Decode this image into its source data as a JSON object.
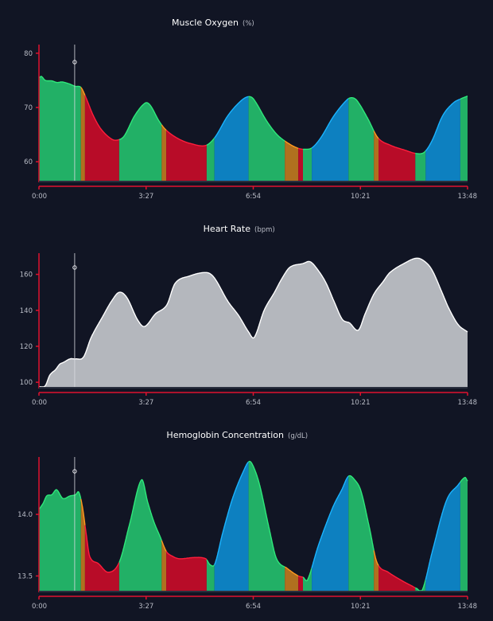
{
  "zone_colors": {
    "green": {
      "fill": "#22b066",
      "line": "#2ee87a"
    },
    "orange": {
      "fill": "#b0701f",
      "line": "#ff9a1e"
    },
    "red": {
      "fill": "#b80c28",
      "line": "#ff1e3c"
    },
    "blue": {
      "fill": "#0d80c0",
      "line": "#1ab4ff"
    },
    "gray": {
      "fill": "#b4b7bd",
      "line": "#ffffff"
    }
  },
  "axis_color": "#e0122e",
  "cursor_time_s": 69,
  "zones": [
    {
      "from": 0,
      "to": 81,
      "zone": "green"
    },
    {
      "from": 81,
      "to": 89,
      "zone": "orange"
    },
    {
      "from": 89,
      "to": 155,
      "zone": "red"
    },
    {
      "from": 155,
      "to": 237,
      "zone": "green"
    },
    {
      "from": 237,
      "to": 246,
      "zone": "orange"
    },
    {
      "from": 246,
      "to": 324,
      "zone": "red"
    },
    {
      "from": 324,
      "to": 339,
      "zone": "green"
    },
    {
      "from": 339,
      "to": 405,
      "zone": "blue"
    },
    {
      "from": 405,
      "to": 475,
      "zone": "green"
    },
    {
      "from": 475,
      "to": 501,
      "zone": "orange"
    },
    {
      "from": 501,
      "to": 510,
      "zone": "red"
    },
    {
      "from": 510,
      "to": 527,
      "zone": "green"
    },
    {
      "from": 527,
      "to": 598,
      "zone": "blue"
    },
    {
      "from": 598,
      "to": 647,
      "zone": "green"
    },
    {
      "from": 647,
      "to": 656,
      "zone": "orange"
    },
    {
      "from": 656,
      "to": 727,
      "zone": "red"
    },
    {
      "from": 727,
      "to": 747,
      "zone": "green"
    },
    {
      "from": 747,
      "to": 814,
      "zone": "blue"
    },
    {
      "from": 814,
      "to": 828,
      "zone": "green"
    }
  ],
  "chart_data": [
    {
      "type": "area",
      "title": "Muscle Oxygen",
      "unit": "(%)",
      "xlim": [
        0,
        828
      ],
      "xticks": [
        0,
        207,
        414,
        621,
        828
      ],
      "xtick_labels": [
        "0:00",
        "3:27",
        "6:54",
        "10:21",
        "13:48"
      ],
      "ylim": [
        56.5,
        81
      ],
      "yticks": [
        60,
        70,
        80
      ],
      "ytick_labels": [
        "60",
        "70",
        "80"
      ],
      "colored_by_zone": true,
      "points": [
        [
          0,
          75.5
        ],
        [
          5,
          75.7
        ],
        [
          12,
          75
        ],
        [
          25,
          74.9
        ],
        [
          35,
          74.6
        ],
        [
          45,
          74.7
        ],
        [
          60,
          74.3
        ],
        [
          70,
          73.9
        ],
        [
          81,
          73.7
        ],
        [
          90,
          72
        ],
        [
          105,
          68.5
        ],
        [
          120,
          66
        ],
        [
          140,
          64.2
        ],
        [
          152,
          64
        ],
        [
          165,
          64.8
        ],
        [
          185,
          68.5
        ],
        [
          205,
          70.8
        ],
        [
          215,
          70.4
        ],
        [
          232,
          67.5
        ],
        [
          246,
          65.8
        ],
        [
          270,
          64.2
        ],
        [
          295,
          63.3
        ],
        [
          322,
          63
        ],
        [
          340,
          64.5
        ],
        [
          365,
          68.5
        ],
        [
          390,
          71.2
        ],
        [
          405,
          72
        ],
        [
          415,
          71.5
        ],
        [
          440,
          67.5
        ],
        [
          460,
          65
        ],
        [
          480,
          63.5
        ],
        [
          500,
          62.5
        ],
        [
          515,
          62.3
        ],
        [
          528,
          62.6
        ],
        [
          545,
          64.5
        ],
        [
          570,
          68.5
        ],
        [
          595,
          71.4
        ],
        [
          605,
          71.8
        ],
        [
          615,
          71.2
        ],
        [
          635,
          68
        ],
        [
          655,
          64.4
        ],
        [
          680,
          63
        ],
        [
          705,
          62.2
        ],
        [
          730,
          61.5
        ],
        [
          745,
          61.8
        ],
        [
          760,
          64
        ],
        [
          780,
          68.5
        ],
        [
          800,
          70.8
        ],
        [
          815,
          71.6
        ],
        [
          828,
          72.1
        ]
      ]
    },
    {
      "type": "area",
      "title": "Heart Rate",
      "unit": "(bpm)",
      "xlim": [
        0,
        828
      ],
      "xticks": [
        0,
        207,
        414,
        621,
        828
      ],
      "xtick_labels": [
        "0:00",
        "3:27",
        "6:54",
        "10:21",
        "13:48"
      ],
      "ylim": [
        97.4,
        170
      ],
      "yticks": [
        100,
        120,
        140,
        160
      ],
      "ytick_labels": [
        "100",
        "120",
        "140",
        "160"
      ],
      "colored_by_zone": false,
      "points": [
        [
          0,
          97.5
        ],
        [
          12,
          98
        ],
        [
          21,
          104
        ],
        [
          32,
          107
        ],
        [
          40,
          110
        ],
        [
          47,
          111
        ],
        [
          60,
          113
        ],
        [
          71,
          113
        ],
        [
          86,
          114
        ],
        [
          101,
          125
        ],
        [
          124,
          137
        ],
        [
          140,
          145
        ],
        [
          155,
          150
        ],
        [
          170,
          147
        ],
        [
          190,
          135
        ],
        [
          204,
          131
        ],
        [
          225,
          138
        ],
        [
          247,
          143
        ],
        [
          263,
          155
        ],
        [
          290,
          159
        ],
        [
          324,
          161
        ],
        [
          339,
          158
        ],
        [
          365,
          145
        ],
        [
          386,
          137
        ],
        [
          405,
          128
        ],
        [
          416,
          125
        ],
        [
          435,
          140
        ],
        [
          455,
          150
        ],
        [
          470,
          158
        ],
        [
          485,
          164
        ],
        [
          510,
          166
        ],
        [
          524,
          167
        ],
        [
          540,
          162
        ],
        [
          555,
          155
        ],
        [
          570,
          145
        ],
        [
          586,
          135
        ],
        [
          600,
          133
        ],
        [
          617,
          129
        ],
        [
          630,
          138
        ],
        [
          647,
          149
        ],
        [
          665,
          156
        ],
        [
          678,
          161
        ],
        [
          705,
          166
        ],
        [
          731,
          169
        ],
        [
          750,
          166
        ],
        [
          762,
          161
        ],
        [
          780,
          149
        ],
        [
          792,
          141
        ],
        [
          810,
          132
        ],
        [
          828,
          128
        ]
      ]
    },
    {
      "type": "area",
      "title": "Hemoglobin Concentration",
      "unit": "(g/dL)",
      "xlim": [
        0,
        828
      ],
      "xticks": [
        0,
        207,
        414,
        621,
        828
      ],
      "xtick_labels": [
        "0:00",
        "3:27",
        "6:54",
        "10:21",
        "13:48"
      ],
      "ylim": [
        13.38,
        14.44
      ],
      "yticks": [
        13.5,
        14.0
      ],
      "ytick_labels": [
        "13.5",
        "14.0"
      ],
      "colored_by_zone": true,
      "points": [
        [
          0,
          14.04
        ],
        [
          8,
          14.09
        ],
        [
          15,
          14.15
        ],
        [
          25,
          14.16
        ],
        [
          34,
          14.2
        ],
        [
          46,
          14.13
        ],
        [
          60,
          14.15
        ],
        [
          71,
          14.16
        ],
        [
          77,
          14.18
        ],
        [
          84,
          14.06
        ],
        [
          91,
          13.85
        ],
        [
          98,
          13.66
        ],
        [
          115,
          13.6
        ],
        [
          134,
          13.53
        ],
        [
          155,
          13.61
        ],
        [
          175,
          13.92
        ],
        [
          198,
          14.28
        ],
        [
          210,
          14.1
        ],
        [
          222,
          13.94
        ],
        [
          234,
          13.82
        ],
        [
          246,
          13.7
        ],
        [
          258,
          13.66
        ],
        [
          271,
          13.64
        ],
        [
          301,
          13.65
        ],
        [
          322,
          13.64
        ],
        [
          331,
          13.59
        ],
        [
          340,
          13.6
        ],
        [
          355,
          13.85
        ],
        [
          374,
          14.13
        ],
        [
          395,
          14.35
        ],
        [
          407,
          14.43
        ],
        [
          418,
          14.35
        ],
        [
          428,
          14.21
        ],
        [
          445,
          13.88
        ],
        [
          459,
          13.64
        ],
        [
          480,
          13.56
        ],
        [
          501,
          13.5
        ],
        [
          510,
          13.49
        ],
        [
          519,
          13.47
        ],
        [
          540,
          13.75
        ],
        [
          568,
          14.06
        ],
        [
          585,
          14.2
        ],
        [
          598,
          14.31
        ],
        [
          610,
          14.28
        ],
        [
          622,
          14.19
        ],
        [
          638,
          13.9
        ],
        [
          653,
          13.61
        ],
        [
          675,
          13.53
        ],
        [
          702,
          13.46
        ],
        [
          720,
          13.42
        ],
        [
          729,
          13.4
        ],
        [
          741,
          13.39
        ],
        [
          760,
          13.7
        ],
        [
          787,
          14.11
        ],
        [
          810,
          14.24
        ],
        [
          823,
          14.3
        ],
        [
          828,
          14.27
        ]
      ]
    }
  ]
}
